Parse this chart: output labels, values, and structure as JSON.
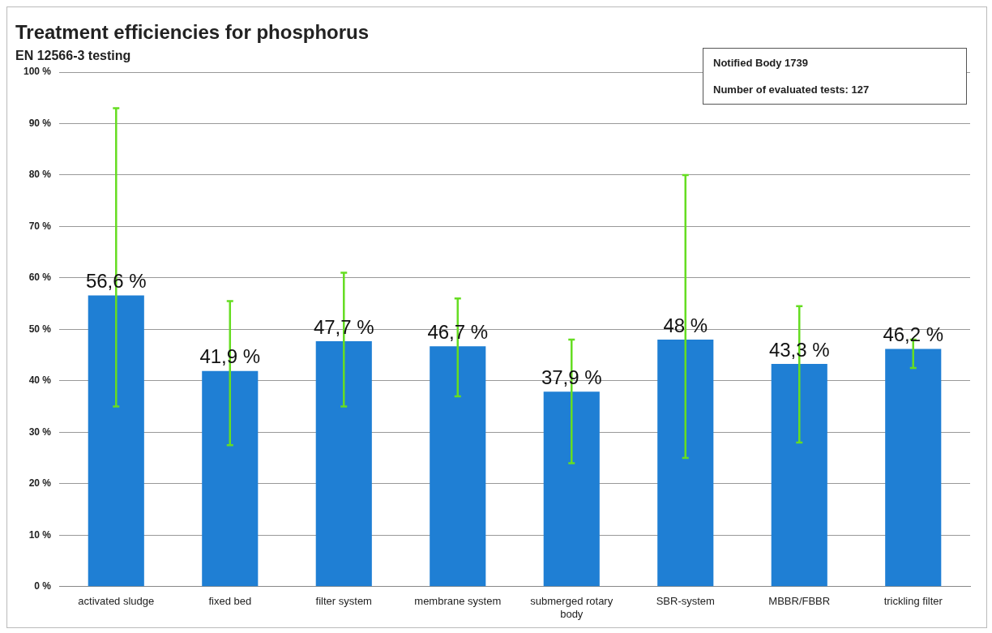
{
  "chart_data": {
    "type": "bar",
    "title": "Treatment efficiencies for phosphorus",
    "subtitle": "EN 12566-3 testing",
    "categories": [
      "activated sludge",
      "fixed bed",
      "filter system",
      "membrane system",
      "submerged rotary body",
      "SBR-system",
      "MBBR/FBBR",
      "trickling filter"
    ],
    "values": [
      56.6,
      41.9,
      47.7,
      46.7,
      37.9,
      48,
      43.3,
      46.2
    ],
    "value_labels": [
      "56,6 %",
      "41,9 %",
      "47,7 %",
      "46,7 %",
      "37,9 %",
      "48 %",
      "43,3 %",
      "46,2 %"
    ],
    "errors": [
      [
        35,
        93
      ],
      [
        27.5,
        55.5
      ],
      [
        35,
        61
      ],
      [
        37,
        56
      ],
      [
        24,
        48
      ],
      [
        25,
        80
      ],
      [
        28,
        54.5
      ],
      [
        42.5,
        48
      ]
    ],
    "color": "#1f7fd4",
    "ylim": [
      0,
      100
    ],
    "yticks": [
      {
        "value": 0,
        "label": "0 %"
      },
      {
        "value": 10,
        "label": "10 %"
      },
      {
        "value": 20,
        "label": "20 %"
      },
      {
        "value": 30,
        "label": "30 %"
      },
      {
        "value": 40,
        "label": "40 %"
      },
      {
        "value": 50,
        "label": "50 %"
      },
      {
        "value": 60,
        "label": "60 %"
      },
      {
        "value": 70,
        "label": "70 %"
      },
      {
        "value": 80,
        "label": "80 %"
      },
      {
        "value": 90,
        "label": "90 %"
      },
      {
        "value": 100,
        "label": "100 %"
      }
    ],
    "grid": "y",
    "legend": false,
    "annotations": [
      "Notified Body  1739",
      "Number of evaluated tests:  127"
    ]
  }
}
